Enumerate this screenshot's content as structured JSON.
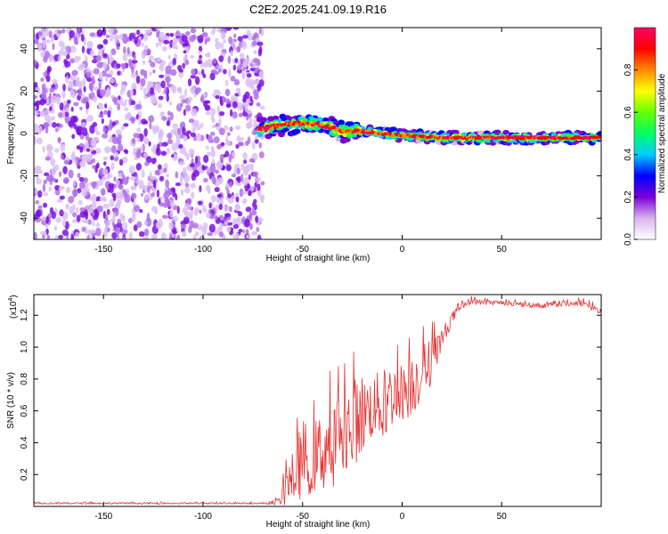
{
  "title": "C2E2.2025.241.09.19.R16",
  "chart_data": [
    {
      "type": "heatmap",
      "title": "C2E2.2025.241.09.19.R16",
      "xlabel": "Height of straight line (km)",
      "ylabel": "Frequency (Hz)",
      "xlim": [
        -185,
        100
      ],
      "ylim": [
        -50,
        50
      ],
      "xticks": [
        -150,
        -100,
        -50,
        0,
        50
      ],
      "xtick_labels": [
        "-150",
        "-100",
        "-50",
        "0",
        "50"
      ],
      "yticks": [
        -40,
        -20,
        0,
        20,
        40
      ],
      "ytick_labels": [
        "-40",
        "-20",
        "0",
        "20",
        "40"
      ],
      "noise_region_x": [
        -185,
        -70
      ],
      "signal_track": {
        "x": [
          -72,
          -60,
          -50,
          -40,
          -30,
          -20,
          -10,
          0,
          20,
          40,
          60,
          80,
          100
        ],
        "y": [
          2,
          4,
          5,
          4,
          1,
          1,
          0,
          -1,
          -2,
          -2,
          -2,
          -2,
          -2
        ]
      },
      "colorbar": {
        "label": "Normalized spectral amplitude",
        "range": [
          0,
          1
        ],
        "ticks": [
          0.0,
          0.2,
          0.4,
          0.6,
          0.8
        ],
        "tick_labels": [
          "0.0",
          "0.2",
          "0.4",
          "0.6",
          "0.8"
        ],
        "colors": [
          "#ffffff",
          "#d8b4f0",
          "#7a00d8",
          "#0000ff",
          "#00ccff",
          "#00ff66",
          "#66ff00",
          "#ffff00",
          "#ff8800",
          "#ff0000",
          "#ff0066"
        ]
      }
    },
    {
      "type": "line",
      "xlabel": "Height of straight line (km)",
      "ylabel": "SNR (10 * v/v)",
      "y_multiplier_label": "(x10",
      "y_multiplier_exp": "4",
      "y_multiplier_close": ")",
      "xlim": [
        -185,
        100
      ],
      "ylim": [
        0,
        1.33
      ],
      "xticks": [
        -150,
        -100,
        -50,
        0,
        50
      ],
      "xtick_labels": [
        "-150",
        "-100",
        "-50",
        "0",
        "50"
      ],
      "yticks": [
        0.2,
        0.4,
        0.6,
        0.8,
        1.0,
        1.2
      ],
      "ytick_labels": [
        "0.2",
        "0.4",
        "0.6",
        "0.8",
        "1.0",
        "1.2"
      ],
      "series": [
        {
          "name": "SNR",
          "color": "#e83030",
          "x": [
            -185,
            -150,
            -100,
            -70,
            -62,
            -58,
            -54,
            -50,
            -45,
            -40,
            -35,
            -30,
            -25,
            -20,
            -15,
            -10,
            -5,
            0,
            5,
            10,
            15,
            20,
            25,
            30,
            35,
            40,
            50,
            60,
            70,
            80,
            90,
            100
          ],
          "y": [
            0.02,
            0.02,
            0.02,
            0.02,
            0.03,
            0.12,
            0.2,
            0.3,
            0.3,
            0.35,
            0.4,
            0.48,
            0.52,
            0.58,
            0.62,
            0.65,
            0.7,
            0.72,
            0.76,
            0.84,
            0.92,
            1.06,
            1.18,
            1.26,
            1.29,
            1.28,
            1.28,
            1.27,
            1.26,
            1.27,
            1.28,
            1.22
          ],
          "noise_envelope": [
            0.005,
            0.005,
            0.005,
            0.005,
            0.02,
            0.12,
            0.18,
            0.25,
            0.22,
            0.26,
            0.3,
            0.25,
            0.28,
            0.26,
            0.2,
            0.22,
            0.2,
            0.18,
            0.2,
            0.18,
            0.15,
            0.06,
            0.04,
            0.02,
            0.02,
            0.015,
            0.015,
            0.015,
            0.015,
            0.015,
            0.02,
            0.03
          ]
        }
      ]
    }
  ]
}
